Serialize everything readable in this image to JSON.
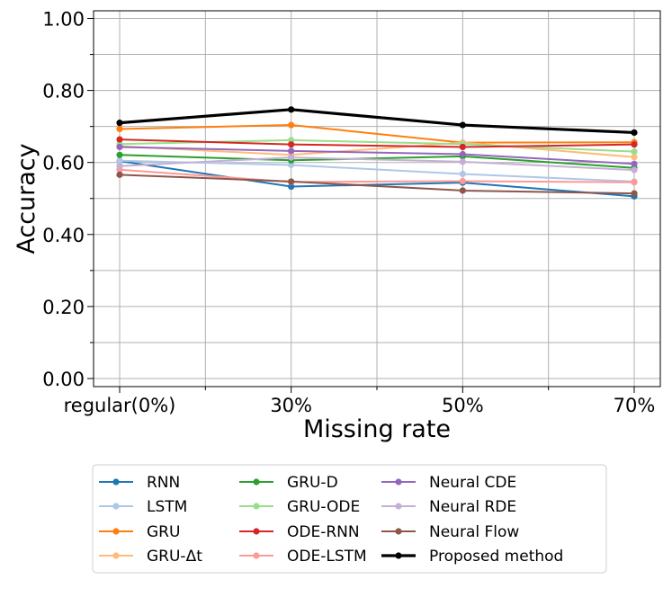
{
  "chart_data": {
    "type": "line",
    "title": "",
    "xlabel": "Missing rate",
    "ylabel": "Accuracy",
    "categories": [
      "regular(0%)",
      "30%",
      "50%",
      "70%"
    ],
    "ylim": [
      0.0,
      1.02
    ],
    "yticks": [
      "0.00",
      "0.20",
      "0.40",
      "0.60",
      "0.80",
      "1.00"
    ],
    "ytick_values": [
      0.0,
      0.2,
      0.4,
      0.6,
      0.8,
      1.0
    ],
    "grid": true,
    "legend_position": "bottom",
    "series": [
      {
        "name": "RNN",
        "color": "#1f77b4",
        "values": [
          0.604,
          0.533,
          0.544,
          0.506
        ]
      },
      {
        "name": "LSTM",
        "color": "#aec7e8",
        "values": [
          0.605,
          0.593,
          0.568,
          0.547
        ]
      },
      {
        "name": "GRU",
        "color": "#ff7f0e",
        "values": [
          0.693,
          0.704,
          0.655,
          0.656
        ]
      },
      {
        "name": "GRU-Δt",
        "color": "#ffbb78",
        "values": [
          0.645,
          0.621,
          0.655,
          0.615
        ]
      },
      {
        "name": "GRU-D",
        "color": "#2ca02c",
        "values": [
          0.621,
          0.606,
          0.617,
          0.585
        ]
      },
      {
        "name": "GRU-ODE",
        "color": "#98df8a",
        "values": [
          0.651,
          0.662,
          0.651,
          0.63
        ]
      },
      {
        "name": "ODE-RNN",
        "color": "#d62728",
        "values": [
          0.664,
          0.65,
          0.643,
          0.65
        ]
      },
      {
        "name": "ODE-LSTM",
        "color": "#ff9896",
        "values": [
          0.58,
          0.546,
          0.548,
          0.545
        ]
      },
      {
        "name": "Neural CDE",
        "color": "#9467bd",
        "values": [
          0.643,
          0.632,
          0.623,
          0.596
        ]
      },
      {
        "name": "Neural RDE",
        "color": "#c5b0d5",
        "values": [
          0.59,
          0.614,
          0.602,
          0.579
        ]
      },
      {
        "name": "Neural Flow",
        "color": "#8c564b",
        "values": [
          0.566,
          0.547,
          0.522,
          0.514
        ]
      },
      {
        "name": "Proposed method",
        "color": "#000000",
        "values": [
          0.71,
          0.747,
          0.704,
          0.683
        ]
      }
    ]
  }
}
